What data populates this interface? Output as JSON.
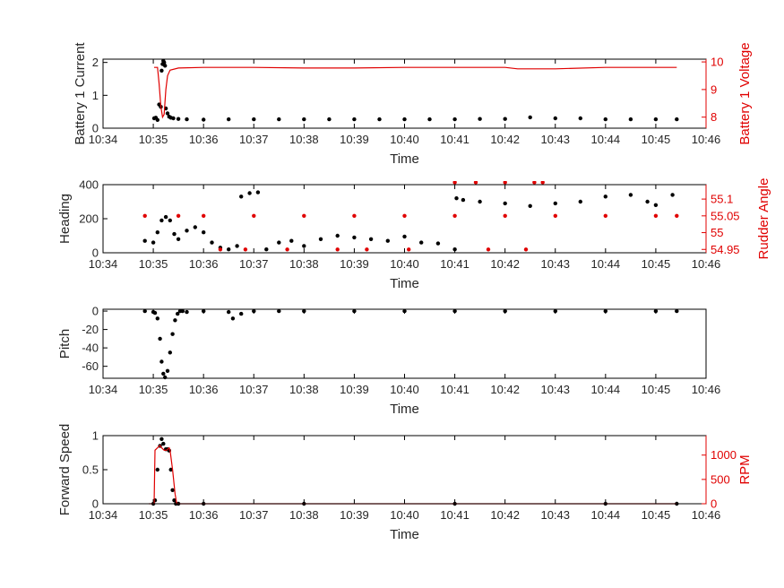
{
  "chart_data": [
    {
      "type": "line",
      "xlabel": "Time",
      "ylabel_left": "Battery 1 Current",
      "ylabel_right": "Battery 1 Voltage",
      "x_tick_labels": [
        "10:34",
        "10:35",
        "10:36",
        "10:37",
        "10:38",
        "10:39",
        "10:40",
        "10:41",
        "10:42",
        "10:43",
        "10:44",
        "10:45",
        "10:46"
      ],
      "xlim": [
        "10:34",
        "10:46"
      ],
      "ylim_left": [
        0,
        2.1
      ],
      "yticks_left": [
        "0",
        "1",
        "2"
      ],
      "ylim_right": [
        7.6,
        10.1
      ],
      "yticks_right": [
        "8",
        "9",
        "10"
      ],
      "series": [
        {
          "axis": "left",
          "color": "#000000",
          "style": "dots",
          "x": [
            "10:35:01",
            "10:35:03",
            "10:35:05",
            "10:35:07",
            "10:35:09",
            "10:35:10",
            "10:35:11",
            "10:35:12",
            "10:35:13",
            "10:35:14",
            "10:35:15",
            "10:35:17",
            "10:35:19",
            "10:35:21",
            "10:35:24",
            "10:35:30",
            "10:35:40",
            "10:36:00",
            "10:36:30",
            "10:37:00",
            "10:37:30",
            "10:38:00",
            "10:38:30",
            "10:39:00",
            "10:39:30",
            "10:40:00",
            "10:40:30",
            "10:41:00",
            "10:41:30",
            "10:42:00",
            "10:42:30",
            "10:43:00",
            "10:43:30",
            "10:44:00",
            "10:44:30",
            "10:45:00",
            "10:45:25"
          ],
          "y": [
            0.3,
            0.32,
            0.25,
            0.72,
            0.65,
            1.75,
            1.95,
            2.05,
            2.0,
            1.9,
            0.6,
            0.45,
            0.35,
            0.32,
            0.3,
            0.28,
            0.27,
            0.26,
            0.27,
            0.27,
            0.27,
            0.27,
            0.27,
            0.27,
            0.27,
            0.27,
            0.27,
            0.27,
            0.28,
            0.28,
            0.33,
            0.3,
            0.3,
            0.27,
            0.27,
            0.27,
            0.27
          ]
        },
        {
          "axis": "right",
          "color": "#e00000",
          "style": "line",
          "x": [
            "10:35:01",
            "10:35:05",
            "10:35:07",
            "10:35:09",
            "10:35:11",
            "10:35:13",
            "10:35:15",
            "10:35:17",
            "10:35:20",
            "10:35:30",
            "10:36:00",
            "10:37:00",
            "10:38:00",
            "10:39:00",
            "10:40:00",
            "10:41:00",
            "10:42:00",
            "10:42:15",
            "10:43:00",
            "10:44:00",
            "10:45:00",
            "10:45:25"
          ],
          "y": [
            9.8,
            9.8,
            9.2,
            8.4,
            8.0,
            8.1,
            9.0,
            9.5,
            9.7,
            9.78,
            9.8,
            9.8,
            9.78,
            9.78,
            9.8,
            9.8,
            9.8,
            9.75,
            9.75,
            9.8,
            9.8,
            9.8
          ]
        }
      ]
    },
    {
      "type": "scatter",
      "xlabel": "Time",
      "ylabel_left": "Heading",
      "ylabel_right": "Rudder Angle",
      "x_tick_labels": [
        "10:34",
        "10:35",
        "10:36",
        "10:37",
        "10:38",
        "10:39",
        "10:40",
        "10:41",
        "10:42",
        "10:43",
        "10:44",
        "10:45",
        "10:46"
      ],
      "xlim": [
        "10:34",
        "10:46"
      ],
      "ylim_left": [
        0,
        400
      ],
      "yticks_left": [
        "0",
        "200",
        "400"
      ],
      "ylim_right": [
        54.94,
        55.143
      ],
      "yticks_right": [
        "54.95",
        "55",
        "55.05",
        "55.1"
      ],
      "series": [
        {
          "axis": "left",
          "color": "#000000",
          "style": "dots",
          "x": [
            "10:34:50",
            "10:35:00",
            "10:35:05",
            "10:35:10",
            "10:35:15",
            "10:35:20",
            "10:35:25",
            "10:35:30",
            "10:35:40",
            "10:35:50",
            "10:36:00",
            "10:36:10",
            "10:36:20",
            "10:36:30",
            "10:36:40",
            "10:36:45",
            "10:36:55",
            "10:37:05",
            "10:37:15",
            "10:37:30",
            "10:37:45",
            "10:38:00",
            "10:38:20",
            "10:38:40",
            "10:39:00",
            "10:39:20",
            "10:39:40",
            "10:40:00",
            "10:40:20",
            "10:40:40",
            "10:41:00",
            "10:41:02",
            "10:41:10",
            "10:41:30",
            "10:42:00",
            "10:42:30",
            "10:43:00",
            "10:43:30",
            "10:44:00",
            "10:44:30",
            "10:44:50",
            "10:45:00",
            "10:45:20"
          ],
          "y": [
            70,
            60,
            120,
            190,
            210,
            190,
            110,
            80,
            130,
            150,
            120,
            60,
            30,
            20,
            40,
            330,
            350,
            355,
            20,
            60,
            70,
            40,
            80,
            100,
            90,
            80,
            70,
            95,
            60,
            55,
            20,
            320,
            310,
            300,
            290,
            275,
            290,
            300,
            330,
            340,
            300,
            280,
            340
          ]
        },
        {
          "axis": "right",
          "color": "#e00000",
          "style": "dots",
          "x": [
            "10:34:50",
            "10:35:30",
            "10:36:00",
            "10:37:00",
            "10:38:00",
            "10:39:00",
            "10:40:00",
            "10:41:00",
            "10:42:00",
            "10:43:00",
            "10:44:00",
            "10:45:00",
            "10:45:25",
            "10:36:20",
            "10:36:50",
            "10:37:40",
            "10:38:40",
            "10:39:15",
            "10:40:05",
            "10:41:40",
            "10:42:25",
            "10:41:00",
            "10:41:25",
            "10:42:00",
            "10:42:35",
            "10:42:45"
          ],
          "y": [
            55.05,
            55.05,
            55.05,
            55.05,
            55.05,
            55.05,
            55.05,
            55.05,
            55.05,
            55.05,
            55.05,
            55.05,
            55.05,
            54.95,
            54.95,
            54.95,
            54.95,
            54.95,
            54.95,
            54.95,
            54.95,
            55.15,
            55.15,
            55.15,
            55.15,
            55.15
          ]
        }
      ]
    },
    {
      "type": "scatter",
      "xlabel": "Time",
      "ylabel_left": "Pitch",
      "x_tick_labels": [
        "10:34",
        "10:35",
        "10:36",
        "10:37",
        "10:38",
        "10:39",
        "10:40",
        "10:41",
        "10:42",
        "10:43",
        "10:44",
        "10:45",
        "10:46"
      ],
      "xlim": [
        "10:34",
        "10:46"
      ],
      "ylim_left": [
        -73,
        2
      ],
      "yticks_left": [
        "0",
        "-20",
        "-40",
        "-60"
      ],
      "series": [
        {
          "axis": "left",
          "color": "#000000",
          "style": "dots",
          "x": [
            "10:34:50",
            "10:35:00",
            "10:35:02",
            "10:35:05",
            "10:35:08",
            "10:35:10",
            "10:35:12",
            "10:35:14",
            "10:35:17",
            "10:35:20",
            "10:35:23",
            "10:35:26",
            "10:35:29",
            "10:35:32",
            "10:35:35",
            "10:35:40",
            "10:36:00",
            "10:36:30",
            "10:36:35",
            "10:36:45",
            "10:37:00",
            "10:37:30",
            "10:38:00",
            "10:39:00",
            "10:40:00",
            "10:41:00",
            "10:42:00",
            "10:43:00",
            "10:44:00",
            "10:45:00",
            "10:45:25"
          ],
          "y": [
            0,
            -1,
            -2,
            -8,
            -30,
            -55,
            -68,
            -72,
            -65,
            -45,
            -25,
            -10,
            -3,
            0,
            0,
            -1,
            0,
            -1,
            -8,
            -3,
            0,
            0,
            0,
            0,
            0,
            0,
            0,
            0,
            0,
            0,
            0
          ]
        }
      ]
    },
    {
      "type": "line",
      "xlabel": "Time",
      "ylabel_left": "Forward Speed",
      "ylabel_right": "RPM",
      "x_tick_labels": [
        "10:34",
        "10:35",
        "10:36",
        "10:37",
        "10:38",
        "10:39",
        "10:40",
        "10:41",
        "10:42",
        "10:43",
        "10:44",
        "10:45",
        "10:46"
      ],
      "xlim": [
        "10:34",
        "10:46"
      ],
      "ylim_left": [
        0,
        1
      ],
      "yticks_left": [
        "0",
        "0.5",
        "1"
      ],
      "ylim_right": [
        0,
        1400
      ],
      "yticks_right": [
        "0",
        "500",
        "1000"
      ],
      "series": [
        {
          "axis": "left",
          "color": "#000000",
          "style": "dots",
          "x": [
            "10:35:00",
            "10:35:02",
            "10:35:05",
            "10:35:08",
            "10:35:10",
            "10:35:12",
            "10:35:15",
            "10:35:17",
            "10:35:19",
            "10:35:21",
            "10:35:23",
            "10:35:25",
            "10:35:27",
            "10:35:30",
            "10:36:00",
            "10:38:00",
            "10:41:00",
            "10:44:00",
            "10:45:25"
          ],
          "y": [
            0,
            0.05,
            0.5,
            0.85,
            0.95,
            0.88,
            0.8,
            0.8,
            0.78,
            0.5,
            0.2,
            0.05,
            0,
            0,
            0,
            0,
            0,
            0,
            0
          ]
        },
        {
          "axis": "right",
          "color": "#e00000",
          "style": "line",
          "x": [
            "10:34:55",
            "10:35:01",
            "10:35:02",
            "10:35:05",
            "10:35:08",
            "10:35:10",
            "10:35:13",
            "10:35:16",
            "10:35:19",
            "10:35:20",
            "10:35:23",
            "10:35:26",
            "10:35:28",
            "10:35:30",
            "10:45:25"
          ],
          "y": [
            0,
            0,
            1100,
            1150,
            1200,
            1150,
            1100,
            1100,
            1150,
            1100,
            700,
            200,
            0,
            0,
            0
          ]
        }
      ]
    }
  ]
}
